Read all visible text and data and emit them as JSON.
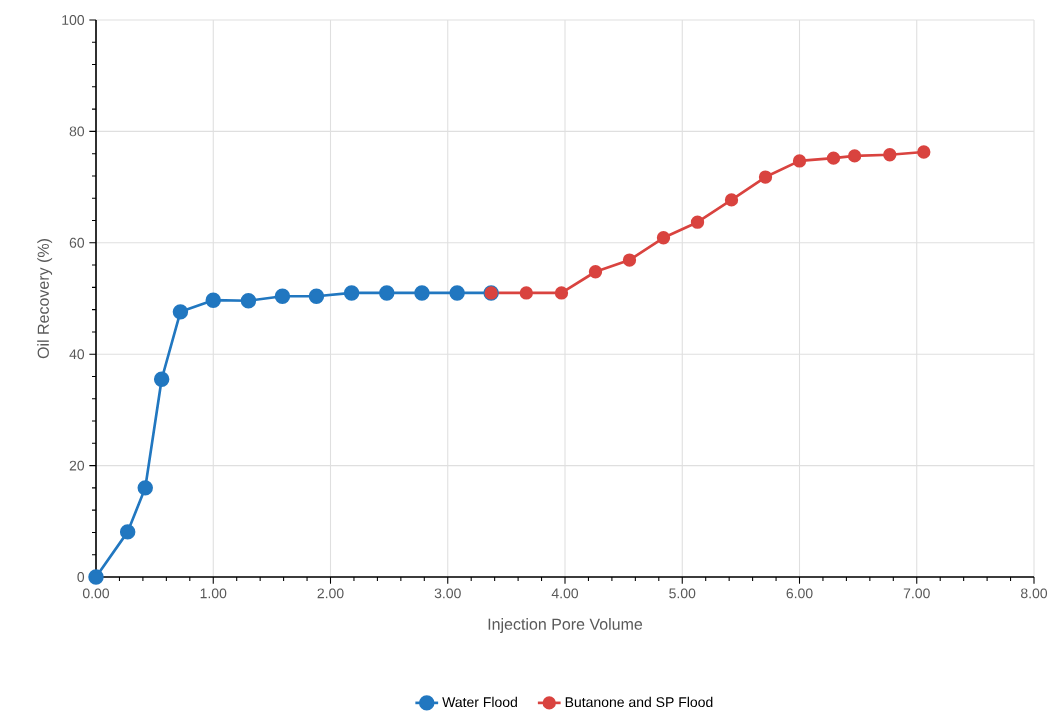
{
  "chart_data": {
    "type": "line",
    "xlabel": "Injection Pore Volume",
    "ylabel": "Oil Recovery (%)",
    "xlim": [
      0,
      8
    ],
    "ylim": [
      0,
      100
    ],
    "xticks": [
      {
        "value": 0,
        "label": "0.00"
      },
      {
        "value": 1,
        "label": "1.00"
      },
      {
        "value": 2,
        "label": "2.00"
      },
      {
        "value": 3,
        "label": "3.00"
      },
      {
        "value": 4,
        "label": "4.00"
      },
      {
        "value": 5,
        "label": "5.00"
      },
      {
        "value": 6,
        "label": "6.00"
      },
      {
        "value": 7,
        "label": "7.00"
      },
      {
        "value": 8,
        "label": "8.00"
      }
    ],
    "yticks": [
      0,
      20,
      40,
      60,
      80,
      100
    ],
    "grid": true,
    "legend": "bottom",
    "marker": "circle",
    "line_style": "solid",
    "series": [
      {
        "name": "Water Flood",
        "color": "#2177c0",
        "x": [
          0,
          0.27,
          0.42,
          0.56,
          0.72,
          1.0,
          1.3,
          1.59,
          1.88,
          2.18,
          2.48,
          2.78,
          3.08,
          3.37
        ],
        "values": [
          0,
          8.1,
          16,
          35.5,
          47.6,
          49.7,
          49.6,
          50.4,
          50.4,
          51,
          51,
          51,
          51,
          51
        ]
      },
      {
        "name": "Butanone and SP Flood",
        "color": "#d9433f",
        "x": [
          3.37,
          3.67,
          3.97,
          4.26,
          4.55,
          4.84,
          5.13,
          5.42,
          5.71,
          6.0,
          6.29,
          6.47,
          6.77,
          7.06
        ],
        "values": [
          51,
          51,
          51,
          54.8,
          56.9,
          60.9,
          63.7,
          67.7,
          71.8,
          74.7,
          75.2,
          75.6,
          75.8,
          76.3
        ]
      }
    ]
  }
}
